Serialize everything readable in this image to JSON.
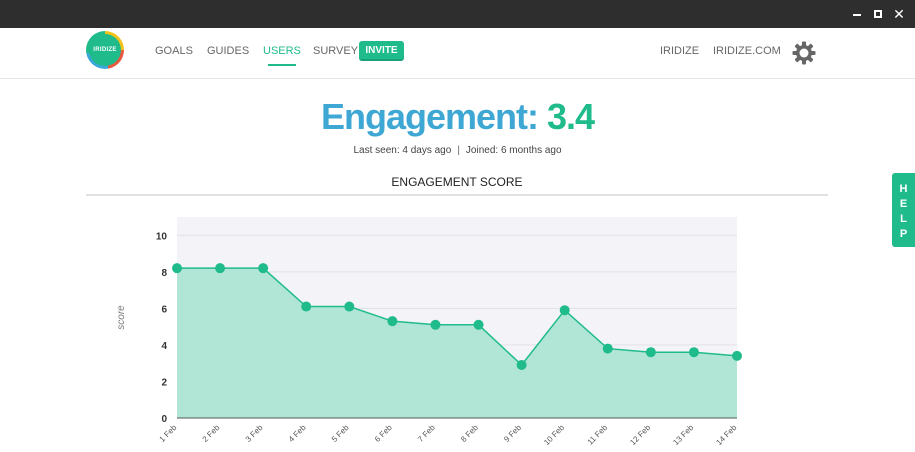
{
  "window": {
    "close_glyph": "✕"
  },
  "nav": {
    "logo_text": "IRIDIZE",
    "links": [
      "GOALS",
      "GUIDES",
      "USERS",
      "SURVEY"
    ],
    "active": "USERS",
    "invite_label": "INVITE",
    "right_links": [
      "IRIDIZE",
      "IRIDIZE.COM"
    ],
    "settings_icon": "gear-icon"
  },
  "header": {
    "label": "Engagement:",
    "value": "3.4",
    "last_seen": "Last seen: 4 days ago",
    "separator": "|",
    "joined": "Joined: 6 months ago"
  },
  "section": {
    "title": "ENGAGEMENT SCORE"
  },
  "help": {
    "letters": [
      "H",
      "E",
      "L",
      "P"
    ]
  },
  "colors": {
    "accent": "#1fbb8b",
    "title_blue": "#3ea7d4",
    "area_fill": "#b1e6d6",
    "plot_bg": "#f4f4f8"
  },
  "chart_data": {
    "type": "area",
    "x": [
      "1 Feb",
      "2 Feb",
      "3 Feb",
      "4 Feb",
      "5 Feb",
      "6 Feb",
      "7 Feb",
      "8 Feb",
      "9 Feb",
      "10 Feb",
      "11 Feb",
      "12 Feb",
      "13 Feb",
      "14 Feb"
    ],
    "series": [
      {
        "values": [
          8.2,
          8.2,
          8.2,
          6.1,
          6.1,
          5.3,
          5.1,
          5.1,
          2.9,
          5.9,
          3.8,
          3.6,
          3.6,
          3.4
        ]
      }
    ],
    "ylabel": "score",
    "ylim": [
      0,
      11
    ],
    "yticks": [
      0,
      2,
      4,
      6,
      8,
      10
    ],
    "grid": true
  }
}
